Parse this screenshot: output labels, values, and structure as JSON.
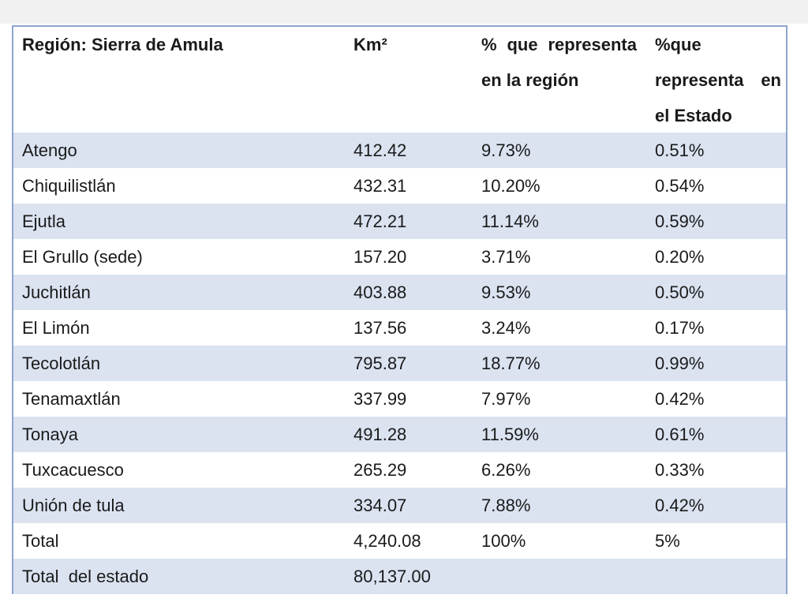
{
  "table": {
    "header": [
      "Región: Sierra de Amula",
      "Km²",
      "% que representa en la región",
      "%que representa en el Estado"
    ],
    "rows": [
      [
        "Atengo",
        "412.42",
        "9.73%",
        "0.51%"
      ],
      [
        "Chiquilistlán",
        "432.31",
        "10.20%",
        "0.54%"
      ],
      [
        "Ejutla",
        "472.21",
        "11.14%",
        "0.59%"
      ],
      [
        "El Grullo (sede)",
        "157.20",
        "3.71%",
        "0.20%"
      ],
      [
        "Juchitlán",
        "403.88",
        "9.53%",
        "0.50%"
      ],
      [
        "El Limón",
        "137.56",
        "3.24%",
        "0.17%"
      ],
      [
        "Tecolotlán",
        "795.87",
        "18.77%",
        "0.99%"
      ],
      [
        "Tenamaxtlán",
        "337.99",
        "7.97%",
        "0.42%"
      ],
      [
        "Tonaya",
        "491.28",
        "11.59%",
        "0.61%"
      ],
      [
        "Tuxcacuesco",
        "265.29",
        "6.26%",
        "0.33%"
      ],
      [
        "Unión de tula",
        "334.07",
        "7.88%",
        "0.42%"
      ],
      [
        "Total",
        "4,240.08",
        "100%",
        "5%"
      ],
      [
        "Total  del estado",
        "80,137.00"
      ]
    ]
  }
}
